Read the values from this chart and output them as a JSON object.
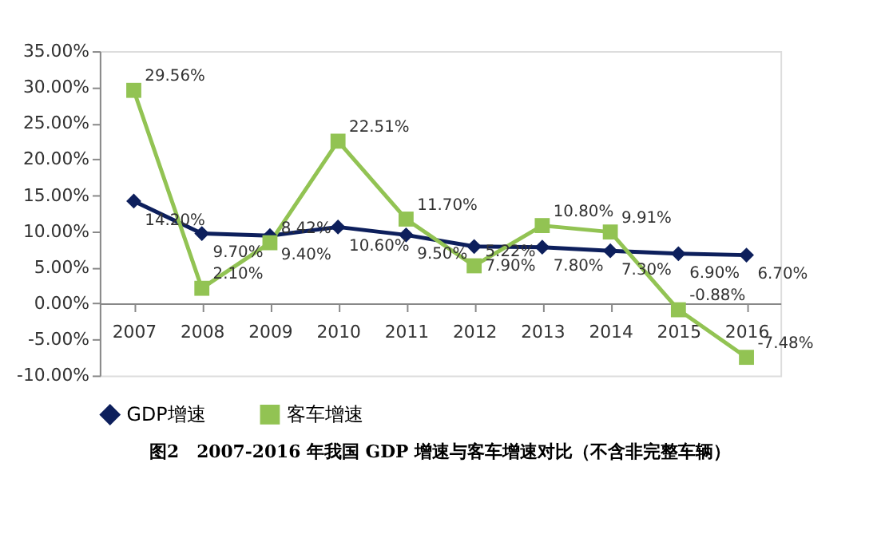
{
  "chart_data": {
    "type": "line",
    "categories": [
      "2007",
      "2008",
      "2009",
      "2010",
      "2011",
      "2012",
      "2013",
      "2014",
      "2015",
      "2016"
    ],
    "series": [
      {
        "name": "GDP增速",
        "color": "#0d1f5c",
        "marker": "diamond",
        "values": [
          14.2,
          9.7,
          9.4,
          10.6,
          9.5,
          7.9,
          7.8,
          7.3,
          6.9,
          6.7
        ],
        "value_labels": [
          "14.20%",
          "9.70%",
          "9.40%",
          "10.60%",
          "9.50%",
          "7.90%",
          "7.80%",
          "7.30%",
          "6.90%",
          "6.70%"
        ]
      },
      {
        "name": "客车增速",
        "color": "#92c353",
        "marker": "square",
        "values": [
          29.56,
          2.1,
          8.42,
          22.51,
          11.7,
          5.22,
          10.8,
          9.91,
          -0.88,
          -7.48
        ],
        "value_labels": [
          "29.56%",
          "2.10%",
          "8.42%",
          "22.51%",
          "11.70%",
          "5.22%",
          "10.80%",
          "9.91%",
          "-0.88%",
          "-7.48%"
        ]
      }
    ],
    "ylim": [
      -10,
      35
    ],
    "yticks": [
      {
        "value": -10,
        "label": "-10.00%"
      },
      {
        "value": -5,
        "label": "-5.00%"
      },
      {
        "value": 0,
        "label": "0.00%"
      },
      {
        "value": 5,
        "label": "5.00%"
      },
      {
        "value": 10,
        "label": "10.00%"
      },
      {
        "value": 15,
        "label": "15.00%"
      },
      {
        "value": 20,
        "label": "20.00%"
      },
      {
        "value": 25,
        "label": "25.00%"
      },
      {
        "value": 30,
        "label": "30.00%"
      },
      {
        "value": 35,
        "label": "35.00%"
      }
    ],
    "grid": false,
    "legend": "bottom",
    "line_style": "solid",
    "annotations": [
      "图2　2007-2016 年我国 GDP 增速与客车增速对比（不含非完整车辆）"
    ]
  }
}
